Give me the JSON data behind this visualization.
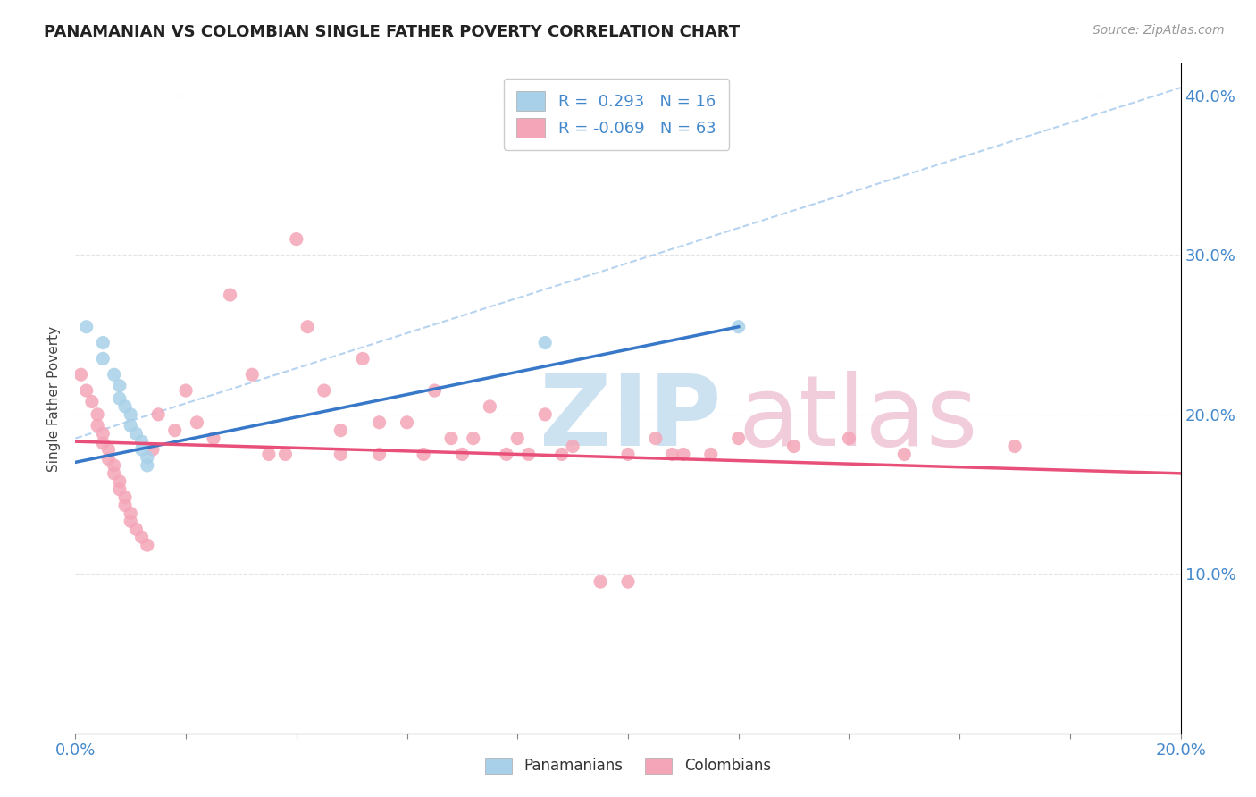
{
  "title": "PANAMANIAN VS COLOMBIAN SINGLE FATHER POVERTY CORRELATION CHART",
  "source": "Source: ZipAtlas.com",
  "ylabel": "Single Father Poverty",
  "xlim": [
    0.0,
    0.2
  ],
  "ylim": [
    0.0,
    0.42
  ],
  "x_ticks": [
    0.0,
    0.02,
    0.04,
    0.06,
    0.08,
    0.1,
    0.12,
    0.14,
    0.16,
    0.18,
    0.2
  ],
  "y_ticks": [
    0.0,
    0.1,
    0.2,
    0.3,
    0.4
  ],
  "panamanian_color": "#a8d0e8",
  "colombian_color": "#f4a6b8",
  "pan_line_color": "#3878c8",
  "col_line_color": "#e8507a",
  "dash_line_color": "#aaccee",
  "panamanian_R": 0.293,
  "panamanian_N": 16,
  "colombian_R": -0.069,
  "colombian_N": 63,
  "pan_line": [
    0.0,
    0.17,
    0.12,
    0.255
  ],
  "col_line": [
    0.0,
    0.183,
    0.2,
    0.163
  ],
  "dash_line": [
    0.0,
    0.185,
    0.2,
    0.405
  ],
  "panamanian_scatter": [
    [
      0.002,
      0.255
    ],
    [
      0.005,
      0.245
    ],
    [
      0.005,
      0.235
    ],
    [
      0.007,
      0.225
    ],
    [
      0.008,
      0.218
    ],
    [
      0.008,
      0.21
    ],
    [
      0.009,
      0.205
    ],
    [
      0.01,
      0.2
    ],
    [
      0.01,
      0.193
    ],
    [
      0.011,
      0.188
    ],
    [
      0.012,
      0.183
    ],
    [
      0.012,
      0.178
    ],
    [
      0.013,
      0.173
    ],
    [
      0.013,
      0.168
    ],
    [
      0.085,
      0.245
    ],
    [
      0.12,
      0.255
    ]
  ],
  "colombian_scatter": [
    [
      0.001,
      0.225
    ],
    [
      0.002,
      0.215
    ],
    [
      0.003,
      0.208
    ],
    [
      0.004,
      0.2
    ],
    [
      0.004,
      0.193
    ],
    [
      0.005,
      0.188
    ],
    [
      0.005,
      0.182
    ],
    [
      0.006,
      0.178
    ],
    [
      0.006,
      0.172
    ],
    [
      0.007,
      0.168
    ],
    [
      0.007,
      0.163
    ],
    [
      0.008,
      0.158
    ],
    [
      0.008,
      0.153
    ],
    [
      0.009,
      0.148
    ],
    [
      0.009,
      0.143
    ],
    [
      0.01,
      0.138
    ],
    [
      0.01,
      0.133
    ],
    [
      0.011,
      0.128
    ],
    [
      0.012,
      0.123
    ],
    [
      0.013,
      0.118
    ],
    [
      0.014,
      0.178
    ],
    [
      0.015,
      0.2
    ],
    [
      0.018,
      0.19
    ],
    [
      0.02,
      0.215
    ],
    [
      0.022,
      0.195
    ],
    [
      0.025,
      0.185
    ],
    [
      0.028,
      0.275
    ],
    [
      0.032,
      0.225
    ],
    [
      0.035,
      0.175
    ],
    [
      0.038,
      0.175
    ],
    [
      0.04,
      0.31
    ],
    [
      0.042,
      0.255
    ],
    [
      0.045,
      0.215
    ],
    [
      0.048,
      0.19
    ],
    [
      0.048,
      0.175
    ],
    [
      0.052,
      0.235
    ],
    [
      0.055,
      0.195
    ],
    [
      0.055,
      0.175
    ],
    [
      0.06,
      0.195
    ],
    [
      0.063,
      0.175
    ],
    [
      0.065,
      0.215
    ],
    [
      0.068,
      0.185
    ],
    [
      0.07,
      0.175
    ],
    [
      0.072,
      0.185
    ],
    [
      0.075,
      0.205
    ],
    [
      0.078,
      0.175
    ],
    [
      0.08,
      0.185
    ],
    [
      0.082,
      0.175
    ],
    [
      0.085,
      0.2
    ],
    [
      0.088,
      0.175
    ],
    [
      0.09,
      0.18
    ],
    [
      0.095,
      0.095
    ],
    [
      0.1,
      0.175
    ],
    [
      0.1,
      0.095
    ],
    [
      0.105,
      0.185
    ],
    [
      0.108,
      0.175
    ],
    [
      0.11,
      0.175
    ],
    [
      0.115,
      0.175
    ],
    [
      0.12,
      0.185
    ],
    [
      0.13,
      0.18
    ],
    [
      0.14,
      0.185
    ],
    [
      0.15,
      0.175
    ],
    [
      0.17,
      0.18
    ]
  ],
  "watermark_zip_color": "#c8dff0",
  "watermark_atlas_color": "#f0c8d8",
  "background_color": "#ffffff",
  "grid_color": "#dddddd"
}
